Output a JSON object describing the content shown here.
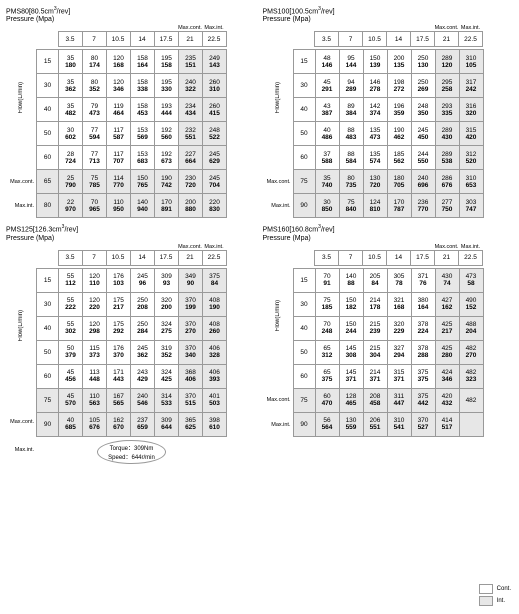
{
  "ints_cols": [
    5,
    6
  ],
  "col_labels": {
    "mc": "Max.cont.",
    "mi": "Max.int."
  },
  "row_side": {
    "flow": "Flow(L/min)",
    "mc": "Max.cont.",
    "mi": "Max.int."
  },
  "legend": {
    "cont": "Cont.",
    "int": "Int."
  },
  "callout": {
    "torque": "Torque：309Nm",
    "speed": "Speed：644r/min"
  },
  "models": [
    {
      "title": "PMS80[80.5cm³/rev]",
      "sub": "Pressure (Mpa)",
      "p": [
        "3.5",
        "7",
        "10.5",
        "14",
        "17.5",
        "21",
        "22.5"
      ],
      "rows": [
        "15",
        "30",
        "40",
        "50",
        "60",
        "65",
        "80"
      ],
      "int_rows": [
        6,
        7
      ],
      "c": [
        [
          [
            "35",
            "180"
          ],
          [
            "80",
            "174"
          ],
          [
            "120",
            "168"
          ],
          [
            "158",
            "164"
          ],
          [
            "195",
            "158"
          ],
          [
            "235",
            "151"
          ],
          [
            "249",
            "143"
          ]
        ],
        [
          [
            "35",
            "362"
          ],
          [
            "80",
            "352"
          ],
          [
            "120",
            "346"
          ],
          [
            "158",
            "338"
          ],
          [
            "195",
            "330"
          ],
          [
            "240",
            "322"
          ],
          [
            "260",
            "310"
          ]
        ],
        [
          [
            "35",
            "482"
          ],
          [
            "79",
            "473"
          ],
          [
            "119",
            "464"
          ],
          [
            "158",
            "453"
          ],
          [
            "193",
            "444"
          ],
          [
            "234",
            "434"
          ],
          [
            "260",
            "415"
          ]
        ],
        [
          [
            "30",
            "602"
          ],
          [
            "77",
            "594"
          ],
          [
            "117",
            "587"
          ],
          [
            "153",
            "569"
          ],
          [
            "192",
            "560"
          ],
          [
            "232",
            "551"
          ],
          [
            "248",
            "522"
          ]
        ],
        [
          [
            "28",
            "724"
          ],
          [
            "77",
            "713"
          ],
          [
            "117",
            "707"
          ],
          [
            "153",
            "683"
          ],
          [
            "192",
            "673"
          ],
          [
            "227",
            "664"
          ],
          [
            "245",
            "629"
          ]
        ],
        [
          [
            "25",
            "790"
          ],
          [
            "75",
            "785"
          ],
          [
            "114",
            "770"
          ],
          [
            "150",
            "765"
          ],
          [
            "190",
            "742"
          ],
          [
            "230",
            "720"
          ],
          [
            "245",
            "704"
          ]
        ],
        [
          [
            "22",
            "970"
          ],
          [
            "70",
            "965"
          ],
          [
            "110",
            "950"
          ],
          [
            "140",
            "940"
          ],
          [
            "170",
            "891"
          ],
          [
            "200",
            "880"
          ],
          [
            "220",
            "830"
          ]
        ]
      ]
    },
    {
      "title": "PMS100[100.5cm³/rev]",
      "sub": "Pressure (Mpa)",
      "p": [
        "3.5",
        "7",
        "10.5",
        "14",
        "17.5",
        "21",
        "22.5"
      ],
      "rows": [
        "15",
        "30",
        "40",
        "50",
        "60",
        "75",
        "90"
      ],
      "int_rows": [
        6,
        7
      ],
      "c": [
        [
          [
            "48",
            "146"
          ],
          [
            "95",
            "144"
          ],
          [
            "150",
            "139"
          ],
          [
            "200",
            "135"
          ],
          [
            "250",
            "130"
          ],
          [
            "289",
            "120"
          ],
          [
            "310",
            "105"
          ]
        ],
        [
          [
            "45",
            "291"
          ],
          [
            "94",
            "289"
          ],
          [
            "146",
            "278"
          ],
          [
            "198",
            "272"
          ],
          [
            "250",
            "269"
          ],
          [
            "295",
            "258"
          ],
          [
            "317",
            "242"
          ]
        ],
        [
          [
            "43",
            "387"
          ],
          [
            "89",
            "384"
          ],
          [
            "142",
            "374"
          ],
          [
            "196",
            "359"
          ],
          [
            "248",
            "350"
          ],
          [
            "293",
            "335"
          ],
          [
            "316",
            "320"
          ]
        ],
        [
          [
            "40",
            "486"
          ],
          [
            "88",
            "483"
          ],
          [
            "135",
            "473"
          ],
          [
            "190",
            "462"
          ],
          [
            "245",
            "450"
          ],
          [
            "289",
            "430"
          ],
          [
            "315",
            "420"
          ]
        ],
        [
          [
            "37",
            "588"
          ],
          [
            "88",
            "584"
          ],
          [
            "135",
            "574"
          ],
          [
            "185",
            "562"
          ],
          [
            "244",
            "550"
          ],
          [
            "289",
            "538"
          ],
          [
            "312",
            "520"
          ]
        ],
        [
          [
            "35",
            "740"
          ],
          [
            "80",
            "735"
          ],
          [
            "130",
            "720"
          ],
          [
            "180",
            "705"
          ],
          [
            "240",
            "696"
          ],
          [
            "286",
            "676"
          ],
          [
            "310",
            "653"
          ]
        ],
        [
          [
            "30",
            "850"
          ],
          [
            "75",
            "840"
          ],
          [
            "124",
            "810"
          ],
          [
            "170",
            "787"
          ],
          [
            "236",
            "770"
          ],
          [
            "277",
            "750"
          ],
          [
            "303",
            "747"
          ]
        ]
      ]
    },
    {
      "title": "PMS125[126.3cm³/rev]",
      "sub": "Pressure (Mpa)",
      "p": [
        "3.5",
        "7",
        "10.5",
        "14",
        "17.5",
        "21",
        "22.5"
      ],
      "rows": [
        "15",
        "30",
        "40",
        "50",
        "60",
        "75",
        "90"
      ],
      "int_rows": [
        6,
        7
      ],
      "c": [
        [
          [
            "55",
            "112"
          ],
          [
            "120",
            "110"
          ],
          [
            "176",
            "103"
          ],
          [
            "245",
            "96"
          ],
          [
            "309",
            "93"
          ],
          [
            "349",
            "90"
          ],
          [
            "375",
            "84"
          ]
        ],
        [
          [
            "55",
            "222"
          ],
          [
            "120",
            "220"
          ],
          [
            "175",
            "217"
          ],
          [
            "250",
            "208"
          ],
          [
            "320",
            "200"
          ],
          [
            "370",
            "199"
          ],
          [
            "408",
            "190"
          ]
        ],
        [
          [
            "55",
            "302"
          ],
          [
            "120",
            "298"
          ],
          [
            "175",
            "292"
          ],
          [
            "250",
            "284"
          ],
          [
            "324",
            "275"
          ],
          [
            "370",
            "270"
          ],
          [
            "408",
            "260"
          ]
        ],
        [
          [
            "50",
            "379"
          ],
          [
            "115",
            "373"
          ],
          [
            "176",
            "370"
          ],
          [
            "245",
            "362"
          ],
          [
            "319",
            "352"
          ],
          [
            "370",
            "340"
          ],
          [
            "406",
            "328"
          ]
        ],
        [
          [
            "45",
            "456"
          ],
          [
            "113",
            "448"
          ],
          [
            "171",
            "443"
          ],
          [
            "243",
            "429"
          ],
          [
            "324",
            "425"
          ],
          [
            "368",
            "406"
          ],
          [
            "406",
            "393"
          ]
        ],
        [
          [
            "45",
            "570"
          ],
          [
            "110",
            "563"
          ],
          [
            "167",
            "565"
          ],
          [
            "240",
            "546"
          ],
          [
            "314",
            "533"
          ],
          [
            "370",
            "515"
          ],
          [
            "401",
            "503"
          ]
        ],
        [
          [
            "40",
            "685"
          ],
          [
            "105",
            "676"
          ],
          [
            "162",
            "670"
          ],
          [
            "237",
            "659"
          ],
          [
            "309",
            "644"
          ],
          [
            "365",
            "625"
          ],
          [
            "398",
            "610"
          ]
        ]
      ]
    },
    {
      "title": "PMS160[160.8cm³/rev]",
      "sub": "Pressure (Mpa)",
      "p": [
        "3.5",
        "7",
        "10.5",
        "14",
        "17.5",
        "21",
        "22.5"
      ],
      "rows": [
        "15",
        "30",
        "40",
        "50",
        "60",
        "75",
        "90"
      ],
      "int_rows": [
        6,
        7
      ],
      "c": [
        [
          [
            "70",
            "91"
          ],
          [
            "140",
            "88"
          ],
          [
            "205",
            "84"
          ],
          [
            "305",
            "78"
          ],
          [
            "371",
            "76"
          ],
          [
            "430",
            "74"
          ],
          [
            "473",
            "58"
          ]
        ],
        [
          [
            "75",
            "185"
          ],
          [
            "150",
            "182"
          ],
          [
            "214",
            "178"
          ],
          [
            "321",
            "168"
          ],
          [
            "380",
            "164"
          ],
          [
            "427",
            "162"
          ],
          [
            "490",
            "152"
          ]
        ],
        [
          [
            "70",
            "248"
          ],
          [
            "150",
            "244"
          ],
          [
            "215",
            "239"
          ],
          [
            "320",
            "229"
          ],
          [
            "378",
            "224"
          ],
          [
            "425",
            "217"
          ],
          [
            "488",
            "204"
          ]
        ],
        [
          [
            "65",
            "312"
          ],
          [
            "145",
            "308"
          ],
          [
            "215",
            "304"
          ],
          [
            "327",
            "294"
          ],
          [
            "378",
            "288"
          ],
          [
            "425",
            "280"
          ],
          [
            "482",
            "270"
          ]
        ],
        [
          [
            "65",
            "375"
          ],
          [
            "145",
            "371"
          ],
          [
            "214",
            "371"
          ],
          [
            "315",
            "371"
          ],
          [
            "375",
            "375"
          ],
          [
            "424",
            "346"
          ],
          [
            "482",
            "323"
          ]
        ],
        [
          [
            "60",
            "470"
          ],
          [
            "128",
            "465"
          ],
          [
            "208",
            "458"
          ],
          [
            "311",
            "447"
          ],
          [
            "375",
            "442"
          ],
          [
            "420",
            "432"
          ],
          [
            "482",
            ""
          ]
        ],
        [
          [
            "56",
            "564"
          ],
          [
            "130",
            "559"
          ],
          [
            "206",
            "551"
          ],
          [
            "310",
            "541"
          ],
          [
            "370",
            "527"
          ],
          [
            "414",
            "517"
          ],
          [
            "",
            ""
          ]
        ]
      ]
    }
  ]
}
